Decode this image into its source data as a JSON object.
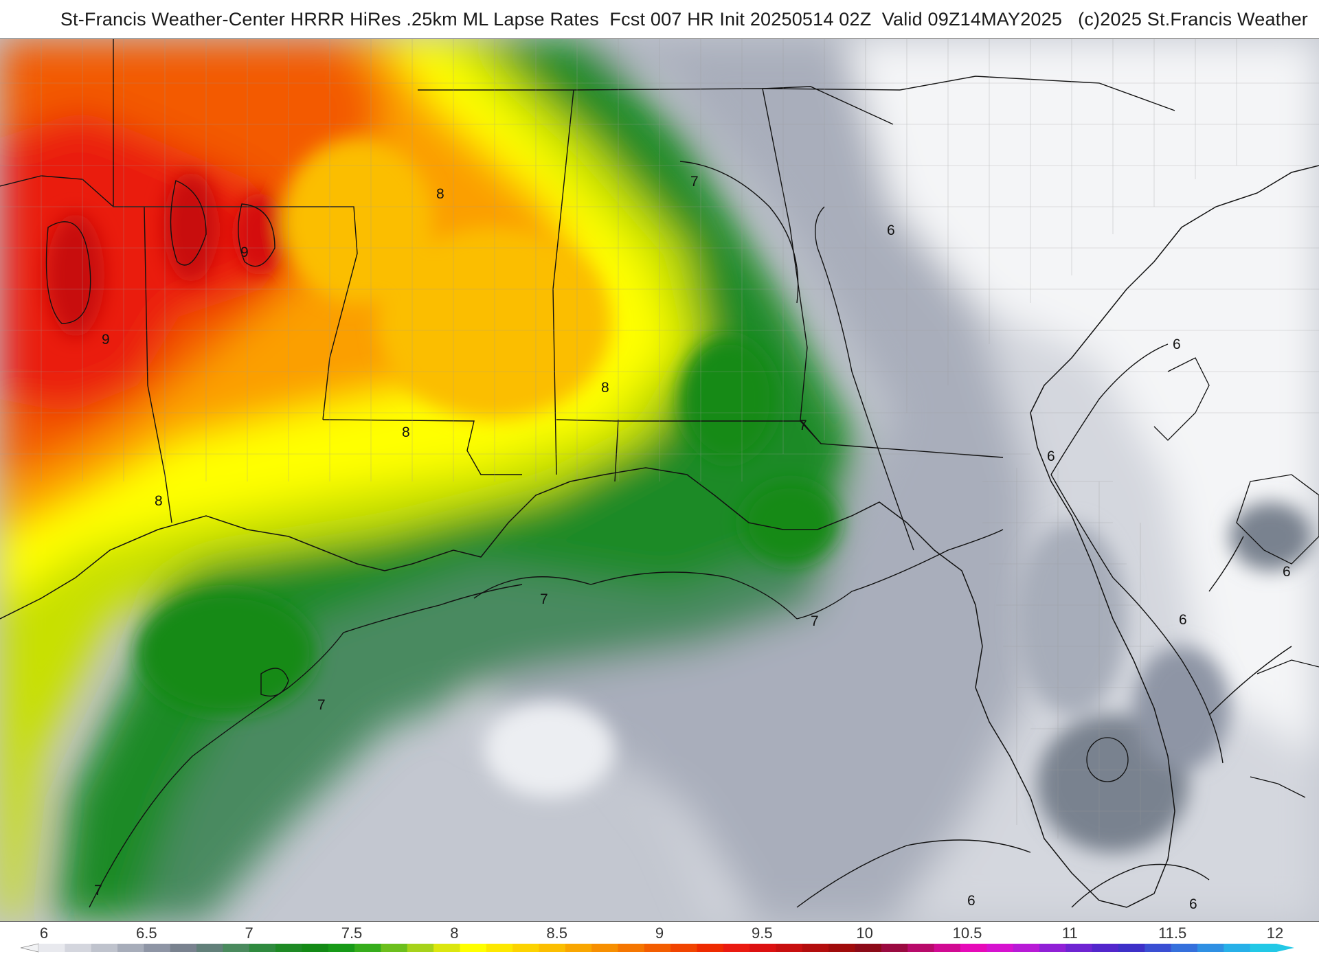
{
  "header": {
    "title": "St-Francis Weather-Center HRRR HiRes .25km ML Lapse Rates  Fcst 007 HR Init 20250514 02Z  Valid 09Z14MAY2025   (c)2025 St.Francis Weather"
  },
  "colorbar": {
    "ticks": [
      "6",
      "6.5",
      "7",
      "7.5",
      "8",
      "8.5",
      "9",
      "9.5",
      "10",
      "10.5",
      "11",
      "11.5",
      "12"
    ],
    "colors": [
      "#e8e9ee",
      "#d4d6de",
      "#bfc3cd",
      "#a7adba",
      "#8e95a5",
      "#79828f",
      "#62807a",
      "#4a8a5e",
      "#2f8a3f",
      "#1e8a25",
      "#138a16",
      "#179a18",
      "#36ad1c",
      "#6cbf1d",
      "#a6d21a",
      "#dbe60f",
      "#ffff00",
      "#fde800",
      "#fcd300",
      "#fbbe00",
      "#f9a600",
      "#f78f00",
      "#f57600",
      "#f35d00",
      "#f14400",
      "#ee2a00",
      "#ea1a10",
      "#dc1010",
      "#c80f0f",
      "#b30d0d",
      "#a00b0b",
      "#8c0a18",
      "#9a0a40",
      "#b80a6a",
      "#d10a92",
      "#e60ab8",
      "#d612cf",
      "#b81ad6",
      "#9020d6",
      "#6e24d2",
      "#5226cc",
      "#3d30c8",
      "#3a4fd3",
      "#3570dc",
      "#2f90e3",
      "#27b0e8",
      "#22c8e6"
    ]
  },
  "map": {
    "contour_labels": [
      {
        "text": "9",
        "where": "texas-north"
      },
      {
        "text": "9",
        "where": "texas-west"
      },
      {
        "text": "8",
        "where": "arkansas"
      },
      {
        "text": "8",
        "where": "alabama"
      },
      {
        "text": "8",
        "where": "louisiana"
      },
      {
        "text": "8",
        "where": "texas-south"
      },
      {
        "text": "7",
        "where": "georgia"
      },
      {
        "text": "7",
        "where": "florida-panhandle"
      },
      {
        "text": "7",
        "where": "gulf-north"
      },
      {
        "text": "7",
        "where": "gulf-east"
      },
      {
        "text": "7",
        "where": "gulf-west"
      },
      {
        "text": "7",
        "where": "mexico"
      },
      {
        "text": "6",
        "where": "carolinas"
      },
      {
        "text": "6",
        "where": "atlantic-north"
      },
      {
        "text": "6",
        "where": "jacksonville"
      },
      {
        "text": "6",
        "where": "atlantic-mid"
      },
      {
        "text": "6",
        "where": "atlantic-east"
      },
      {
        "text": "6",
        "where": "gulf-south"
      },
      {
        "text": "6",
        "where": "straits"
      }
    ]
  }
}
